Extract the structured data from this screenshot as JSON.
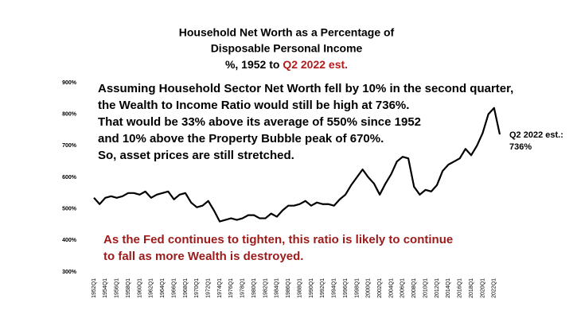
{
  "chart_data": {
    "type": "line",
    "title": [
      "Household Net Worth as a Percentage of",
      "Disposable Personal Income"
    ],
    "subtitle": [
      "%, 1952 to ",
      "Q2 2022 est."
    ],
    "annotations": {
      "main": [
        "Assuming Household Sector Net Worth fell by 10% in the second quarter,",
        "the Wealth to Income Ratio would still be high at 736%.",
        "That would be 33% above its average of 550% since 1952",
        "and 10% above the Property Bubble peak of 670%.",
        "So, asset prices are still stretched."
      ],
      "warning": [
        "As the Fed continues to tighten, this ratio is likely to continue",
        "to fall as more Wealth is destroyed."
      ],
      "estimate": [
        "Q2 2022 est.:",
        "736%"
      ]
    },
    "categories": [
      "1952Q1",
      null,
      "1954Q1",
      null,
      "1956Q1",
      null,
      "1958Q1",
      null,
      "1960Q1",
      null,
      "1962Q1",
      null,
      "1964Q1",
      null,
      "1966Q1",
      null,
      "1968Q1",
      null,
      "1970Q1",
      null,
      "1972Q1",
      null,
      "1974Q1",
      null,
      "1976Q1",
      null,
      "1978Q1",
      null,
      "1980Q1",
      null,
      "1982Q1",
      null,
      "1984Q1",
      null,
      "1986Q1",
      null,
      "1988Q1",
      null,
      "1990Q1",
      null,
      "1992Q1",
      null,
      "1994Q1",
      null,
      "1996Q1",
      null,
      "1998Q1",
      null,
      "2000Q1",
      null,
      "2002Q1",
      null,
      "2004Q1",
      null,
      "2006Q1",
      null,
      "2008Q1",
      null,
      "2010Q1",
      null,
      "2012Q1",
      null,
      "2014Q1",
      null,
      "2016Q1",
      null,
      "2018Q1",
      null,
      "2020Q1",
      null,
      "2022Q1",
      null
    ],
    "series": [
      {
        "color": "#000000",
        "values": [
          535,
          515,
          535,
          540,
          535,
          540,
          550,
          550,
          545,
          555,
          535,
          545,
          550,
          555,
          530,
          545,
          550,
          520,
          505,
          510,
          525,
          495,
          460,
          465,
          470,
          465,
          470,
          480,
          480,
          470,
          470,
          485,
          475,
          495,
          510,
          510,
          515,
          525,
          510,
          520,
          515,
          515,
          510,
          530,
          545,
          575,
          600,
          625,
          600,
          580,
          545,
          580,
          610,
          650,
          665,
          660,
          570,
          545,
          560,
          555,
          575,
          620,
          640,
          650,
          660,
          690,
          670,
          700,
          740,
          800,
          820,
          736
        ]
      }
    ],
    "ylim": [
      300,
      900
    ],
    "yticks": [
      {
        "value": 300,
        "label": "300%"
      },
      {
        "value": 400,
        "label": "400%"
      },
      {
        "value": 500,
        "label": "500%"
      },
      {
        "value": 600,
        "label": "600%"
      },
      {
        "value": 700,
        "label": "700%"
      },
      {
        "value": 800,
        "label": "800%"
      },
      {
        "value": 900,
        "label": "900%"
      }
    ]
  }
}
